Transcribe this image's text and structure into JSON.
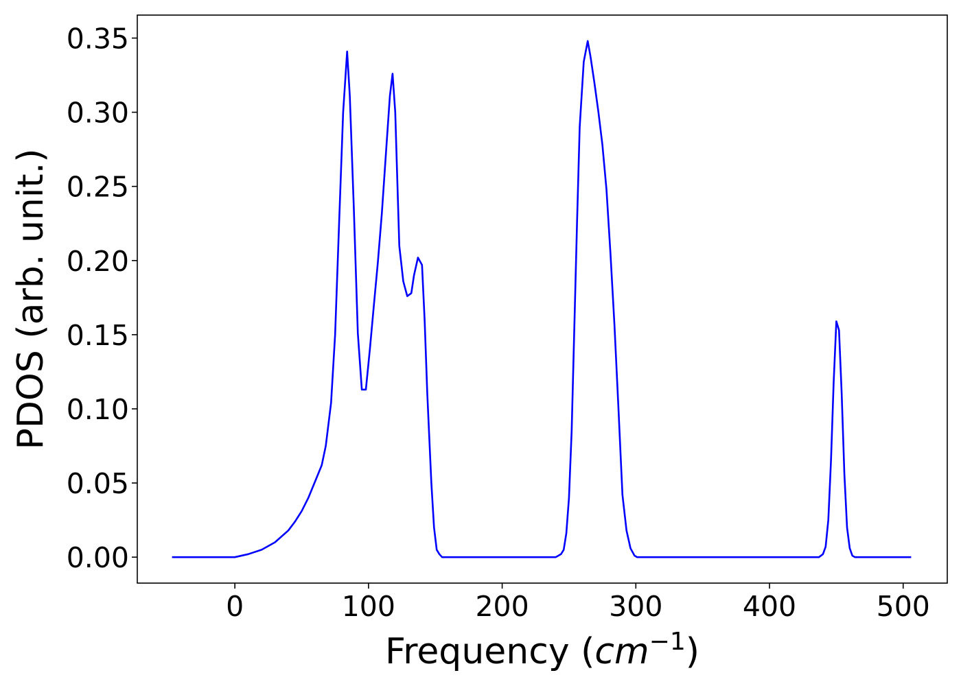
{
  "chart_data": {
    "type": "line",
    "title": "",
    "xlabel": "Frequency (",
    "xlabel_math": "cm",
    "xlabel_sup": "−1",
    "xlabel_close": ")",
    "ylabel": "PDOS (arb. unit.)",
    "xlim": [
      -73,
      533
    ],
    "ylim": [
      -0.0175,
      0.3655
    ],
    "xticks": [
      0,
      100,
      200,
      300,
      400,
      500
    ],
    "xtick_labels": [
      "0",
      "100",
      "200",
      "300",
      "400",
      "500"
    ],
    "yticks": [
      0.0,
      0.05,
      0.1,
      0.15,
      0.2,
      0.25,
      0.3,
      0.35
    ],
    "ytick_labels": [
      "0.00",
      "0.05",
      "0.10",
      "0.15",
      "0.20",
      "0.25",
      "0.30",
      "0.35"
    ],
    "grid": false,
    "series": [
      {
        "color": "#0000ff",
        "x": [
          -47,
          0,
          10,
          20,
          30,
          40,
          45,
          50,
          55,
          60,
          65,
          68,
          72,
          75,
          78,
          81,
          84,
          86,
          89,
          92,
          95,
          98,
          101,
          104,
          107,
          110,
          113,
          116,
          118,
          120,
          123,
          126,
          129,
          132,
          134,
          137,
          140,
          142,
          144,
          147,
          149,
          151,
          153,
          155,
          157,
          159,
          161,
          164,
          170,
          200,
          240,
          244,
          246,
          248,
          250,
          252,
          254,
          256,
          258,
          261,
          264,
          266,
          269,
          272,
          275,
          278,
          281,
          284,
          287,
          290,
          293,
          296,
          299,
          301,
          303,
          306,
          310,
          350,
          400,
          437,
          440,
          442,
          444,
          446,
          448,
          450,
          452,
          454,
          456,
          458,
          460,
          462,
          464,
          466,
          468,
          471,
          475,
          506
        ],
        "y": [
          0.0,
          0.0,
          0.002,
          0.005,
          0.01,
          0.018,
          0.024,
          0.031,
          0.04,
          0.051,
          0.062,
          0.075,
          0.104,
          0.15,
          0.225,
          0.3,
          0.341,
          0.311,
          0.236,
          0.151,
          0.113,
          0.113,
          0.14,
          0.17,
          0.199,
          0.232,
          0.272,
          0.311,
          0.326,
          0.3,
          0.21,
          0.186,
          0.176,
          0.178,
          0.19,
          0.202,
          0.197,
          0.16,
          0.11,
          0.05,
          0.02,
          0.005,
          0.002,
          0.0,
          0.0,
          0.0,
          0.0,
          0.0,
          0.0,
          0.0,
          0.0,
          0.002,
          0.005,
          0.016,
          0.04,
          0.085,
          0.155,
          0.225,
          0.29,
          0.334,
          0.348,
          0.338,
          0.32,
          0.3,
          0.278,
          0.248,
          0.205,
          0.157,
          0.1,
          0.042,
          0.018,
          0.006,
          0.001,
          0.0,
          0.0,
          0.0,
          0.0,
          0.0,
          0.0,
          0.0,
          0.002,
          0.007,
          0.025,
          0.065,
          0.118,
          0.159,
          0.153,
          0.11,
          0.056,
          0.02,
          0.006,
          0.001,
          0.0,
          0.0,
          0.0,
          0.0,
          0.0,
          0.0
        ]
      }
    ]
  }
}
